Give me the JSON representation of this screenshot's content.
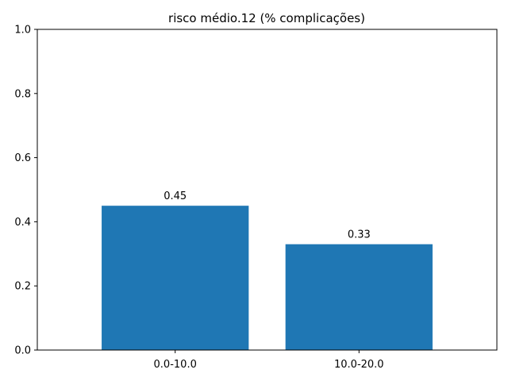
{
  "chart_data": {
    "type": "bar",
    "title": "risco médio.12 (% complicações)",
    "categories": [
      "0.0-10.0",
      "10.0-20.0"
    ],
    "values": [
      0.45,
      0.33
    ],
    "value_labels": [
      "0.45",
      "0.33"
    ],
    "xlabel": "",
    "ylabel": "",
    "ylim": [
      0,
      1.0
    ],
    "yticks": [
      0.0,
      0.2,
      0.4,
      0.6,
      0.8,
      1.0
    ],
    "ytick_labels": [
      "0.0",
      "0.2",
      "0.4",
      "0.6",
      "0.8",
      "1.0"
    ],
    "grid": false,
    "legend": "none",
    "bar_color": "#1f77b4"
  }
}
